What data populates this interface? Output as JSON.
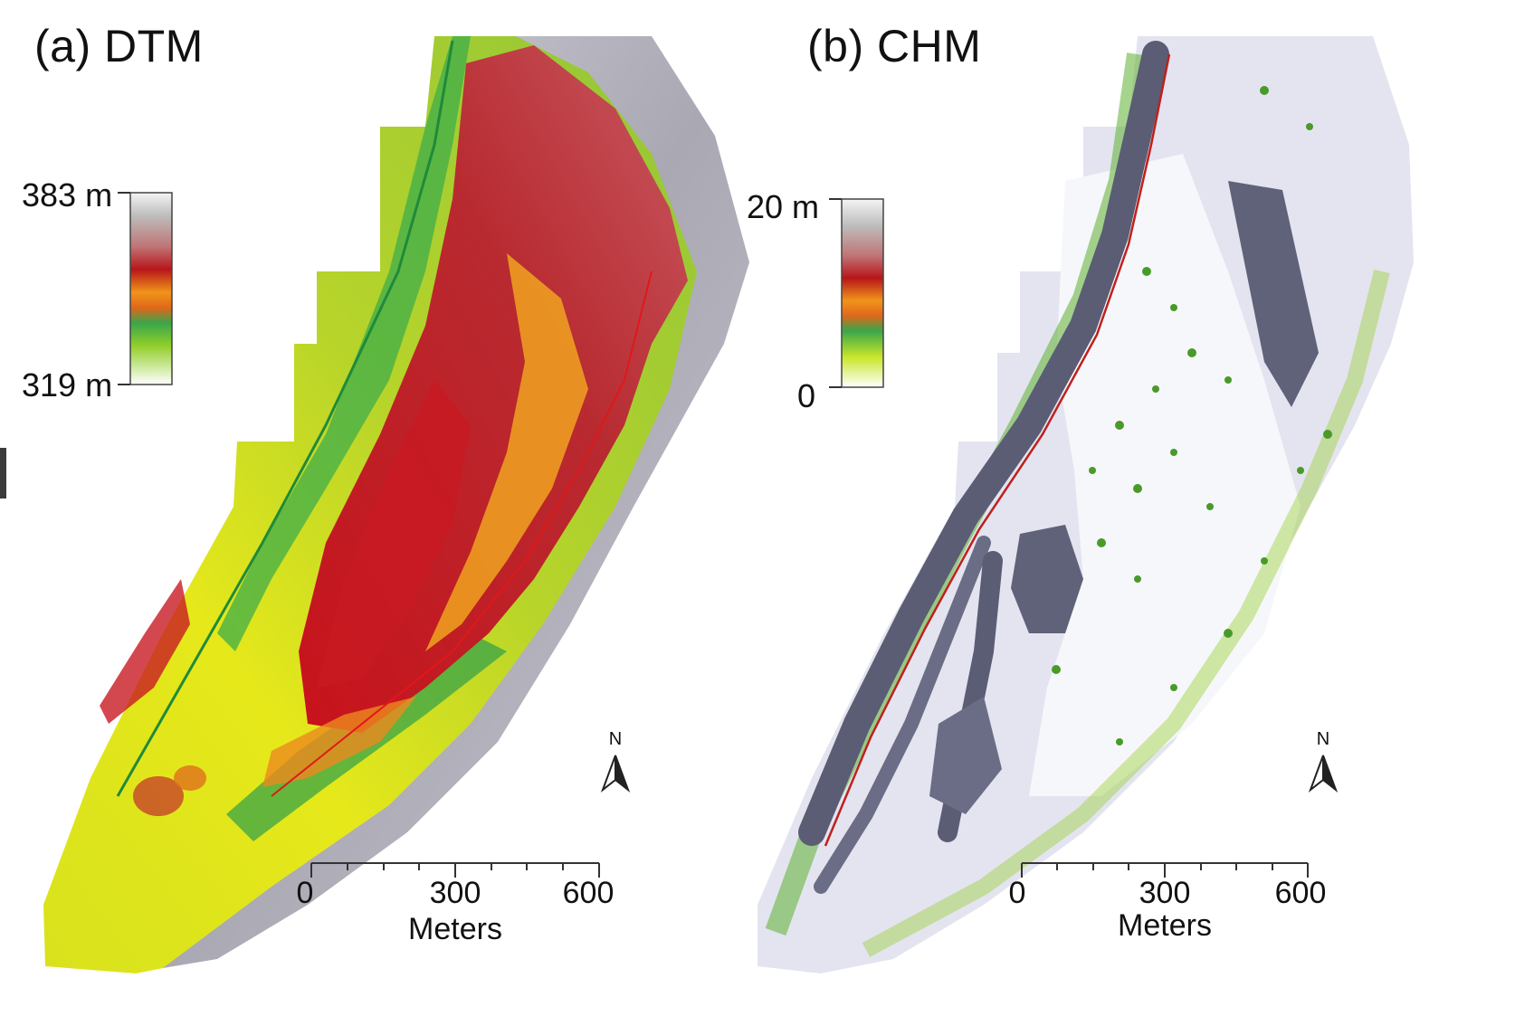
{
  "panels": [
    {
      "title": "(a) DTM",
      "legend": {
        "max_label": "383 m",
        "min_label": "319 m"
      },
      "scale_bar": {
        "ticks": [
          "0",
          "300",
          "600"
        ],
        "unit": "Meters"
      },
      "north_arrow": "N"
    },
    {
      "title": "(b) CHM",
      "legend": {
        "max_label": "20 m",
        "min_label": "0"
      },
      "scale_bar": {
        "ticks": [
          "0",
          "300",
          "600"
        ],
        "unit": "Meters"
      },
      "north_arrow": "N"
    }
  ],
  "colors": {
    "ramp": [
      "#ffffff",
      "#c8e62a",
      "#2bb04a",
      "#f29a1b",
      "#c8151b",
      "#e0e0e0"
    ],
    "dtm_low": "#e6ea1e",
    "dtm_mid": "#f0a020",
    "dtm_high": "#c61e24",
    "hillshade": "#b9b8c2",
    "chm_background": "#e4e4f0",
    "chm_canopy": "#5a5d74",
    "chm_vegetation": "#4ca62d"
  }
}
